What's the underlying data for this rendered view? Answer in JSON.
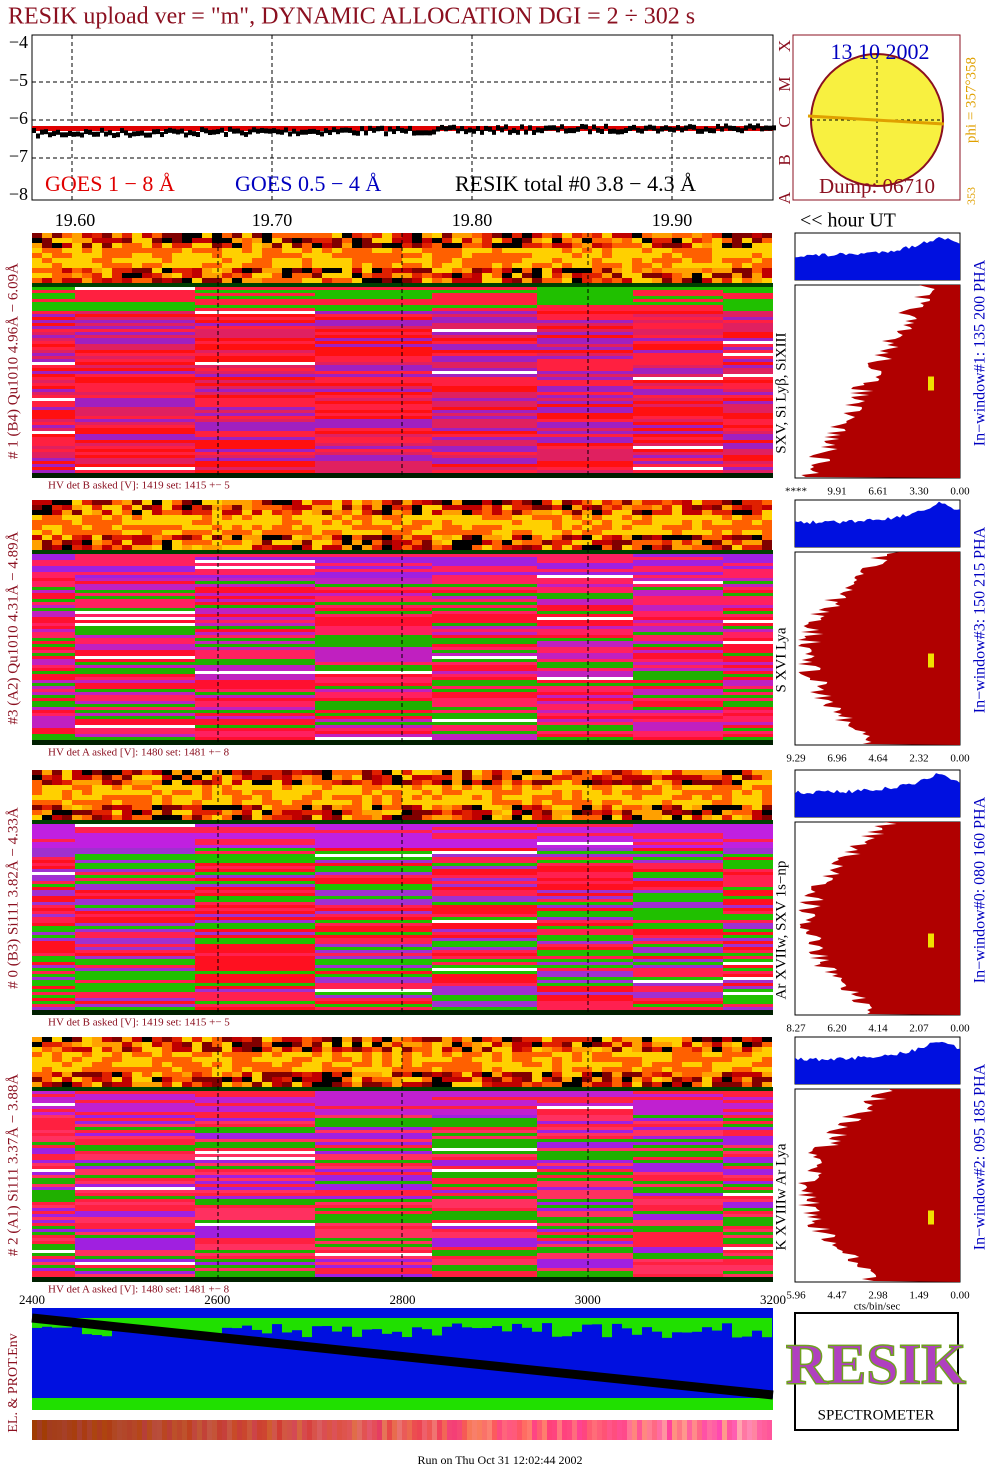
{
  "header": {
    "title": "RESIK upload ver = \"m\", DYNAMIC ALLOCATION  DGI =   2 ÷ 302 s"
  },
  "goes": {
    "yticks": [
      "−4",
      "−5",
      "−6",
      "−7",
      "−8"
    ],
    "classes": [
      "A",
      "B",
      "C",
      "M",
      "X"
    ],
    "legend": [
      "GOES 1 − 8 Å",
      "GOES 0.5 − 4 Å",
      "RESIK total #0  3.8 − 4.3 Å"
    ]
  },
  "sun": {
    "date": "13 10 2002",
    "dump": "Dump: 06710",
    "phi": "phi = 357°358",
    "low": "353"
  },
  "time_axis": {
    "ticks": [
      "19.60",
      "19.70",
      "19.80",
      "19.90"
    ],
    "unit": "<< hour UT"
  },
  "channels": [
    {
      "side": "# 1 (B4) Qu1010 4.96Å − 6.09Å",
      "hv": "HV det B asked [V]:  1419 set:  1415 +−    5",
      "line": "SXV, Si Lyβ, SiXIII",
      "window": "In−window#1:  135 200 PHA",
      "ticks": [
        "****",
        "9.91",
        "6.61",
        "3.30",
        "0.00"
      ]
    },
    {
      "side": "#3 (A2) Qu1010  4.31Å − 4.89Å",
      "hv": "HV det A asked [V]:  1480 set:  1481 +−    8",
      "line": "S XVI Lya",
      "window": "In−window#3:  150 215 PHA",
      "ticks": [
        "9.29",
        "6.96",
        "4.64",
        "2.32",
        "0.00"
      ]
    },
    {
      "side": "# 0 (B3) Si111  3.82Å − 4.33Å",
      "hv": "HV det B asked [V]:  1419 set:  1415 +−    5",
      "line": "Ar XVIIw,  SXV 1s−np",
      "window": "In−window#0:  080 160 PHA",
      "ticks": [
        "8.27",
        "6.20",
        "4.14",
        "2.07",
        "0.00"
      ]
    },
    {
      "side": "# 2 (A1) Si111  3.37Å − 3.88Å",
      "hv": "HV det A asked [V]:  1480 set:  1481 +−    8",
      "line": "K XVIIIw  Ar Lya",
      "window": "In−window#2:  095 185 PHA",
      "ticks": [
        "5.96",
        "4.47",
        "2.98",
        "1.49",
        "0.00"
      ]
    }
  ],
  "hist_unit": "cts/bin/sec",
  "env": {
    "ticks": [
      "2400",
      "2600",
      "2800",
      "3000",
      "3200"
    ],
    "side": "EL. & PROT.Env"
  },
  "logo": {
    "name": "RESIK",
    "word": "SPECTROMETER"
  },
  "footer": "Run on Thu Oct 31 12:02:44 2002"
}
